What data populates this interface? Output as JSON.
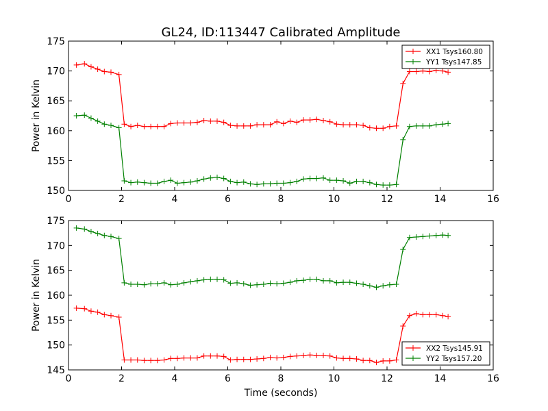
{
  "chart_data": [
    {
      "type": "line",
      "title": "GL24, ID:113447 Calibrated Amplitude",
      "xlabel": "",
      "ylabel": "Power in Kelvin",
      "xlim": [
        0,
        16
      ],
      "ylim": [
        150,
        175
      ],
      "xticks": [
        0,
        2,
        4,
        6,
        8,
        10,
        12,
        14,
        16
      ],
      "yticks": [
        150,
        155,
        160,
        165,
        170,
        175
      ],
      "grid": false,
      "legend": "top-right",
      "x": [
        0.3,
        0.6,
        0.85,
        1.1,
        1.35,
        1.6,
        1.9,
        2.1,
        2.35,
        2.6,
        2.85,
        3.1,
        3.35,
        3.6,
        3.85,
        4.1,
        4.35,
        4.6,
        4.85,
        5.1,
        5.35,
        5.6,
        5.85,
        6.1,
        6.35,
        6.6,
        6.85,
        7.1,
        7.35,
        7.6,
        7.85,
        8.1,
        8.35,
        8.6,
        8.85,
        9.1,
        9.35,
        9.6,
        9.85,
        10.1,
        10.35,
        10.6,
        10.85,
        11.1,
        11.35,
        11.6,
        11.85,
        12.1,
        12.35,
        12.6,
        12.85,
        13.1,
        13.35,
        13.6,
        13.85,
        14.1,
        14.3
      ],
      "series": [
        {
          "name": "XX1 Tsys160.80",
          "color": "#ff0000",
          "values": [
            171.0,
            171.2,
            170.7,
            170.3,
            169.9,
            169.8,
            169.4,
            161.1,
            160.7,
            160.9,
            160.7,
            160.7,
            160.7,
            160.7,
            161.2,
            161.3,
            161.3,
            161.3,
            161.4,
            161.7,
            161.6,
            161.6,
            161.4,
            160.9,
            160.8,
            160.8,
            160.8,
            161.0,
            161.0,
            161.0,
            161.5,
            161.2,
            161.6,
            161.4,
            161.8,
            161.8,
            161.9,
            161.7,
            161.5,
            161.1,
            161.0,
            161.0,
            161.0,
            160.9,
            160.5,
            160.4,
            160.4,
            160.7,
            160.8,
            167.9,
            169.9,
            169.9,
            170.0,
            169.9,
            170.1,
            170.0,
            169.8
          ]
        },
        {
          "name": "YY1 Tsys147.85",
          "color": "#008000",
          "values": [
            162.5,
            162.6,
            162.1,
            161.6,
            161.1,
            160.9,
            160.5,
            151.6,
            151.3,
            151.4,
            151.3,
            151.2,
            151.2,
            151.5,
            151.7,
            151.2,
            151.3,
            151.4,
            151.6,
            151.9,
            152.1,
            152.2,
            152.0,
            151.5,
            151.3,
            151.4,
            151.1,
            151.0,
            151.1,
            151.1,
            151.2,
            151.2,
            151.3,
            151.5,
            151.9,
            152.0,
            152.0,
            152.1,
            151.7,
            151.7,
            151.6,
            151.2,
            151.5,
            151.5,
            151.3,
            151.0,
            150.9,
            150.9,
            151.0,
            158.5,
            160.7,
            160.8,
            160.8,
            160.8,
            161.0,
            161.1,
            161.2
          ]
        }
      ]
    },
    {
      "type": "line",
      "title": "",
      "xlabel": "Time (seconds)",
      "ylabel": "Power in Kelvin",
      "xlim": [
        0,
        16
      ],
      "ylim": [
        145,
        175
      ],
      "xticks": [
        0,
        2,
        4,
        6,
        8,
        10,
        12,
        14,
        16
      ],
      "yticks": [
        145,
        150,
        155,
        160,
        165,
        170,
        175
      ],
      "grid": false,
      "legend": "bottom-right",
      "x": [
        0.3,
        0.6,
        0.85,
        1.1,
        1.35,
        1.6,
        1.9,
        2.1,
        2.35,
        2.6,
        2.85,
        3.1,
        3.35,
        3.6,
        3.85,
        4.1,
        4.35,
        4.6,
        4.85,
        5.1,
        5.35,
        5.6,
        5.85,
        6.1,
        6.35,
        6.6,
        6.85,
        7.1,
        7.35,
        7.6,
        7.85,
        8.1,
        8.35,
        8.6,
        8.85,
        9.1,
        9.35,
        9.6,
        9.85,
        10.1,
        10.35,
        10.6,
        10.85,
        11.1,
        11.35,
        11.6,
        11.85,
        12.1,
        12.35,
        12.6,
        12.85,
        13.1,
        13.35,
        13.6,
        13.85,
        14.1,
        14.3
      ],
      "series": [
        {
          "name": "XX2 Tsys145.91",
          "color": "#ff0000",
          "values": [
            157.4,
            157.3,
            156.8,
            156.6,
            156.1,
            155.9,
            155.6,
            147.0,
            147.0,
            147.0,
            146.9,
            146.9,
            146.9,
            147.0,
            147.3,
            147.3,
            147.4,
            147.4,
            147.4,
            147.8,
            147.8,
            147.8,
            147.7,
            147.0,
            147.1,
            147.1,
            147.1,
            147.2,
            147.3,
            147.5,
            147.4,
            147.5,
            147.7,
            147.8,
            147.9,
            148.0,
            147.9,
            147.9,
            147.8,
            147.4,
            147.3,
            147.3,
            147.2,
            146.9,
            146.9,
            146.5,
            146.8,
            146.8,
            147.0,
            153.8,
            155.9,
            156.3,
            156.1,
            156.1,
            156.1,
            155.9,
            155.7
          ]
        },
        {
          "name": "YY2 Tsys157.20",
          "color": "#008000",
          "values": [
            173.5,
            173.3,
            172.8,
            172.4,
            172.0,
            171.8,
            171.4,
            162.5,
            162.2,
            162.2,
            162.1,
            162.3,
            162.3,
            162.5,
            162.1,
            162.2,
            162.5,
            162.7,
            162.9,
            163.1,
            163.2,
            163.2,
            163.1,
            162.4,
            162.5,
            162.3,
            162.0,
            162.1,
            162.2,
            162.4,
            162.3,
            162.4,
            162.6,
            162.9,
            163.0,
            163.2,
            163.2,
            162.9,
            162.9,
            162.5,
            162.6,
            162.6,
            162.4,
            162.2,
            161.9,
            161.6,
            161.9,
            162.1,
            162.2,
            169.2,
            171.6,
            171.7,
            171.8,
            171.9,
            172.0,
            172.1,
            172.0
          ]
        }
      ]
    }
  ]
}
